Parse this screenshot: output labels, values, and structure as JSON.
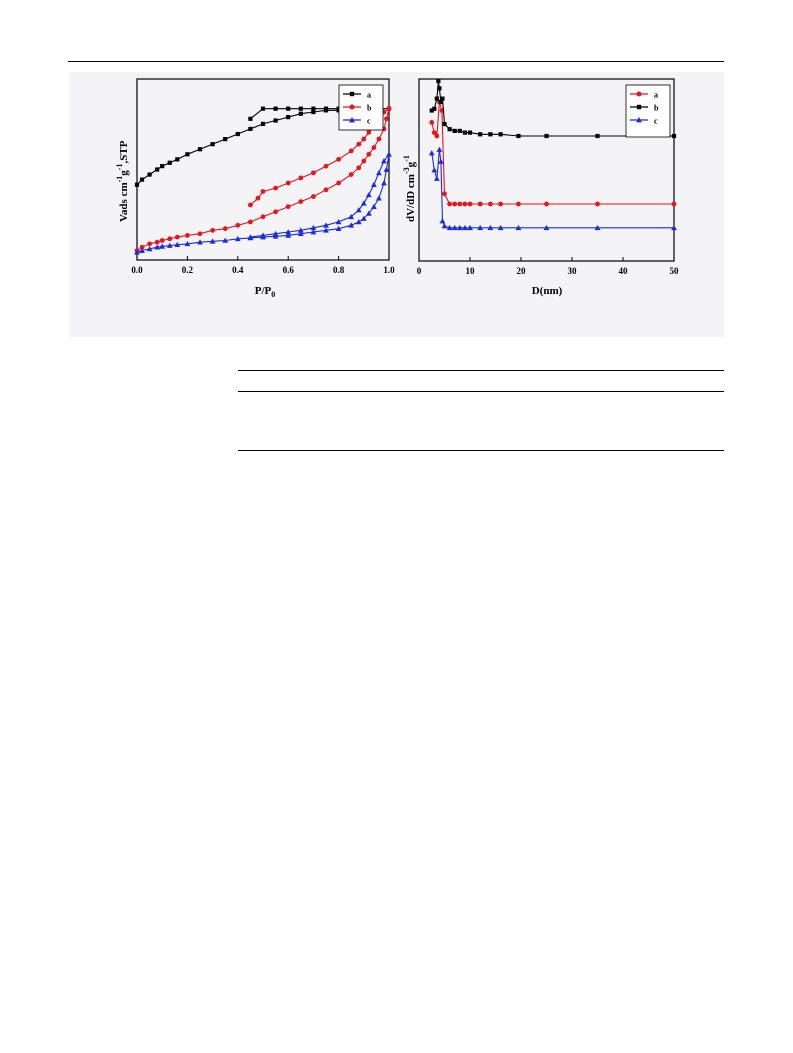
{
  "chart_data": [
    {
      "type": "line",
      "title": "",
      "xlabel": "P/P",
      "xlabel_sub": "0",
      "ylabel": "Vads cm",
      "ylabel_sup1": "-1",
      "ylabel_mid": "g",
      "ylabel_sup2": "-1",
      "ylabel_end": ",STP",
      "xlim": [
        0,
        1.0
      ],
      "ylim": [
        0,
        1.0
      ],
      "xticks": [
        "0.0",
        "0.2",
        "0.4",
        "0.6",
        "0.8",
        "1.0"
      ],
      "y_ticks_labeled": false,
      "legend_position": "top-right",
      "series": [
        {
          "name": "a",
          "color": "#000000",
          "marker": "square",
          "x": [
            0.0,
            0.02,
            0.05,
            0.08,
            0.1,
            0.13,
            0.16,
            0.2,
            0.25,
            0.3,
            0.35,
            0.4,
            0.45,
            0.5,
            0.55,
            0.6,
            0.65,
            0.7,
            0.75,
            0.8,
            0.85,
            0.9,
            0.95,
            1.0,
            0.95,
            0.9,
            0.85,
            0.8,
            0.75,
            0.7,
            0.65,
            0.6,
            0.55,
            0.5,
            0.45
          ],
          "y": [
            0.41,
            0.44,
            0.47,
            0.5,
            0.52,
            0.54,
            0.56,
            0.59,
            0.62,
            0.65,
            0.68,
            0.71,
            0.74,
            0.77,
            0.79,
            0.81,
            0.83,
            0.84,
            0.85,
            0.85,
            0.855,
            0.855,
            0.86,
            0.86,
            0.86,
            0.86,
            0.86,
            0.86,
            0.86,
            0.86,
            0.86,
            0.86,
            0.86,
            0.86,
            0.8
          ]
        },
        {
          "name": "b",
          "color": "#e8141e",
          "marker": "circle",
          "x": [
            0.0,
            0.02,
            0.05,
            0.08,
            0.1,
            0.13,
            0.16,
            0.2,
            0.25,
            0.3,
            0.35,
            0.4,
            0.45,
            0.5,
            0.55,
            0.6,
            0.65,
            0.7,
            0.75,
            0.8,
            0.85,
            0.88,
            0.9,
            0.92,
            0.94,
            0.96,
            0.98,
            0.99,
            1.0,
            0.98,
            0.96,
            0.94,
            0.92,
            0.9,
            0.88,
            0.85,
            0.8,
            0.75,
            0.7,
            0.65,
            0.6,
            0.55,
            0.5,
            0.48,
            0.45
          ],
          "y": [
            0.02,
            0.04,
            0.06,
            0.07,
            0.08,
            0.09,
            0.1,
            0.11,
            0.12,
            0.14,
            0.15,
            0.17,
            0.19,
            0.22,
            0.25,
            0.28,
            0.31,
            0.34,
            0.38,
            0.42,
            0.47,
            0.51,
            0.55,
            0.59,
            0.63,
            0.68,
            0.74,
            0.8,
            0.86,
            0.84,
            0.8,
            0.76,
            0.72,
            0.68,
            0.65,
            0.61,
            0.56,
            0.52,
            0.48,
            0.45,
            0.42,
            0.39,
            0.37,
            0.33,
            0.29
          ]
        },
        {
          "name": "c",
          "color": "#1b2be0",
          "marker": "triangle",
          "x": [
            0.0,
            0.02,
            0.05,
            0.08,
            0.1,
            0.13,
            0.16,
            0.2,
            0.25,
            0.3,
            0.35,
            0.4,
            0.45,
            0.5,
            0.55,
            0.6,
            0.65,
            0.7,
            0.75,
            0.8,
            0.85,
            0.88,
            0.9,
            0.92,
            0.94,
            0.96,
            0.98,
            0.99,
            1.0,
            0.98,
            0.96,
            0.94,
            0.92,
            0.9,
            0.88,
            0.85,
            0.8,
            0.75,
            0.7,
            0.65,
            0.6,
            0.55,
            0.5,
            0.45
          ],
          "y": [
            0.01,
            0.02,
            0.03,
            0.04,
            0.045,
            0.05,
            0.055,
            0.06,
            0.07,
            0.075,
            0.08,
            0.09,
            0.095,
            0.1,
            0.105,
            0.11,
            0.12,
            0.13,
            0.14,
            0.15,
            0.17,
            0.19,
            0.21,
            0.24,
            0.28,
            0.33,
            0.42,
            0.5,
            0.59,
            0.55,
            0.48,
            0.41,
            0.35,
            0.3,
            0.26,
            0.22,
            0.19,
            0.17,
            0.155,
            0.14,
            0.13,
            0.12,
            0.11,
            0.1
          ]
        }
      ]
    },
    {
      "type": "line",
      "title": "",
      "xlabel": "D(nm)",
      "ylabel": "dV/dD cm",
      "ylabel_sup1": "-3",
      "ylabel_mid": "g",
      "ylabel_sup2": "-1",
      "xlim": [
        0,
        50
      ],
      "ylim": [
        0,
        1.0
      ],
      "xticks": [
        "0",
        "10",
        "20",
        "30",
        "40",
        "50"
      ],
      "y_ticks_labeled": false,
      "legend_position": "top-right",
      "series": [
        {
          "name": "a",
          "color": "#e8141e",
          "marker": "circle",
          "x": [
            2.5,
            3.0,
            3.5,
            4.0,
            4.5,
            5.0,
            6,
            7,
            8,
            9,
            10,
            12,
            14,
            16,
            19.5,
            25,
            35,
            50
          ],
          "y": [
            0.78,
            0.72,
            0.7,
            0.9,
            0.85,
            0.36,
            0.3,
            0.3,
            0.3,
            0.3,
            0.3,
            0.3,
            0.3,
            0.3,
            0.3,
            0.3,
            0.3,
            0.3
          ]
        },
        {
          "name": "b",
          "color": "#000000",
          "marker": "square",
          "x": [
            2.5,
            3.0,
            3.5,
            3.8,
            4.0,
            4.3,
            4.6,
            5.0,
            6,
            7,
            8,
            9,
            10,
            12,
            14,
            16,
            19.5,
            25,
            35,
            50
          ],
          "y": [
            0.85,
            0.86,
            0.92,
            1.4,
            0.98,
            0.9,
            0.92,
            0.77,
            0.74,
            0.73,
            0.73,
            0.72,
            0.72,
            0.71,
            0.71,
            0.71,
            0.7,
            0.7,
            0.7,
            0.7
          ]
        },
        {
          "name": "c",
          "color": "#1b2be0",
          "marker": "triangle",
          "x": [
            2.5,
            3.0,
            3.5,
            4.0,
            4.3,
            4.6,
            5.0,
            6,
            7,
            8,
            9,
            10,
            12,
            14,
            16,
            19.5,
            25,
            35,
            50
          ],
          "y": [
            0.6,
            0.5,
            0.45,
            0.62,
            0.55,
            0.2,
            0.17,
            0.16,
            0.16,
            0.16,
            0.16,
            0.16,
            0.16,
            0.16,
            0.16,
            0.16,
            0.16,
            0.16,
            0.16
          ]
        }
      ]
    }
  ]
}
